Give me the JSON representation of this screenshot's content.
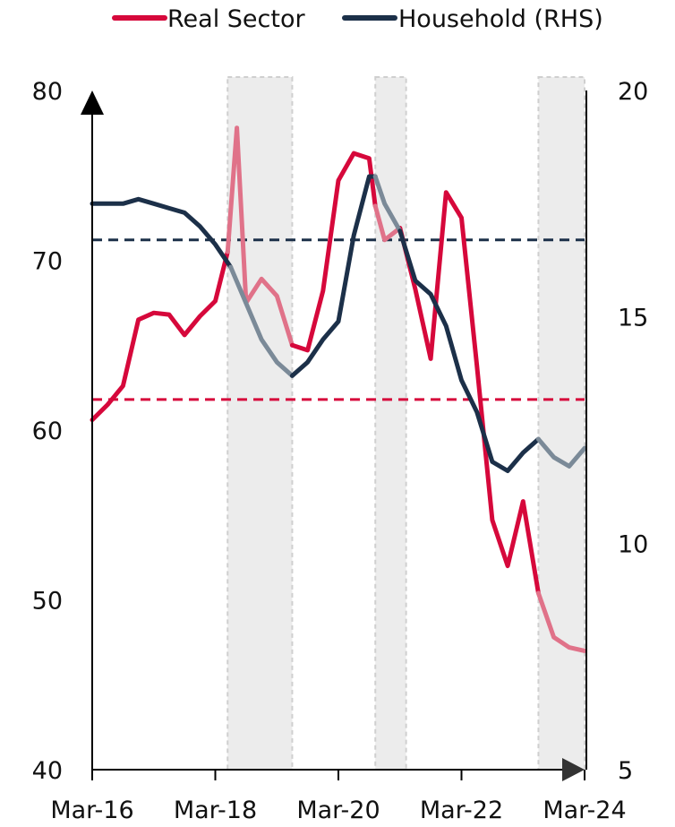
{
  "chart_data": {
    "type": "line",
    "title": "",
    "xlabel": "",
    "ylabel": "",
    "x_ticks": [
      "Mar-16",
      "Mar-18",
      "Mar-20",
      "Mar-22",
      "Mar-24"
    ],
    "x_range": [
      2016.0,
      2024.0
    ],
    "ylim_left": [
      40,
      80
    ],
    "yticks_left": [
      40,
      50,
      60,
      70,
      80
    ],
    "ylim_right": [
      5,
      20
    ],
    "yticks_right": [
      5,
      10,
      15,
      20
    ],
    "legend_position": "top",
    "grid": false,
    "shaded_periods": [
      [
        2018.2,
        2019.25
      ],
      [
        2020.6,
        2021.1
      ],
      [
        2023.25,
        2024.0
      ]
    ],
    "series": [
      {
        "name": "Real Sector",
        "axis": "left",
        "color": "#d6083b",
        "shaded_color": "#e07289",
        "average": 61.8,
        "x": [
          2016.0,
          2016.25,
          2016.5,
          2016.75,
          2017.0,
          2017.25,
          2017.5,
          2017.75,
          2018.0,
          2018.2,
          2018.35,
          2018.5,
          2018.75,
          2019.0,
          2019.25,
          2019.5,
          2019.75,
          2020.0,
          2020.25,
          2020.5,
          2020.6,
          2020.75,
          2021.0,
          2021.25,
          2021.5,
          2021.75,
          2022.0,
          2022.25,
          2022.5,
          2022.75,
          2023.0,
          2023.25,
          2023.5,
          2023.75,
          2024.0
        ],
        "values": [
          60.6,
          61.5,
          62.6,
          66.5,
          66.9,
          66.8,
          65.6,
          66.7,
          67.6,
          70.5,
          77.8,
          67.5,
          68.9,
          67.9,
          65.0,
          64.7,
          68.2,
          74.7,
          76.3,
          76.0,
          73.2,
          71.2,
          71.9,
          68.3,
          64.2,
          74.0,
          72.5,
          63.8,
          54.7,
          52.0,
          55.8,
          50.4,
          47.8,
          47.2,
          47.0
        ]
      },
      {
        "name": "Household (RHS)",
        "axis": "right",
        "color": "#1c3049",
        "shaded_color": "#7b8a98",
        "average": 16.7,
        "x": [
          2016.0,
          2016.25,
          2016.5,
          2016.75,
          2017.0,
          2017.25,
          2017.5,
          2017.75,
          2018.0,
          2018.25,
          2018.5,
          2018.75,
          2019.0,
          2019.25,
          2019.5,
          2019.75,
          2020.0,
          2020.25,
          2020.5,
          2020.6,
          2020.75,
          2021.0,
          2021.25,
          2021.5,
          2021.75,
          2022.0,
          2022.25,
          2022.5,
          2022.75,
          2023.0,
          2023.25,
          2023.5,
          2023.75,
          2024.0
        ],
        "values": [
          17.5,
          17.5,
          17.5,
          17.6,
          17.5,
          17.4,
          17.3,
          17.0,
          16.6,
          16.1,
          15.3,
          14.5,
          14.0,
          13.7,
          14.0,
          14.5,
          14.9,
          16.8,
          18.1,
          18.1,
          17.5,
          16.9,
          15.8,
          15.5,
          14.8,
          13.6,
          12.9,
          11.8,
          11.6,
          12.0,
          12.3,
          11.9,
          11.7,
          12.1
        ]
      }
    ]
  }
}
